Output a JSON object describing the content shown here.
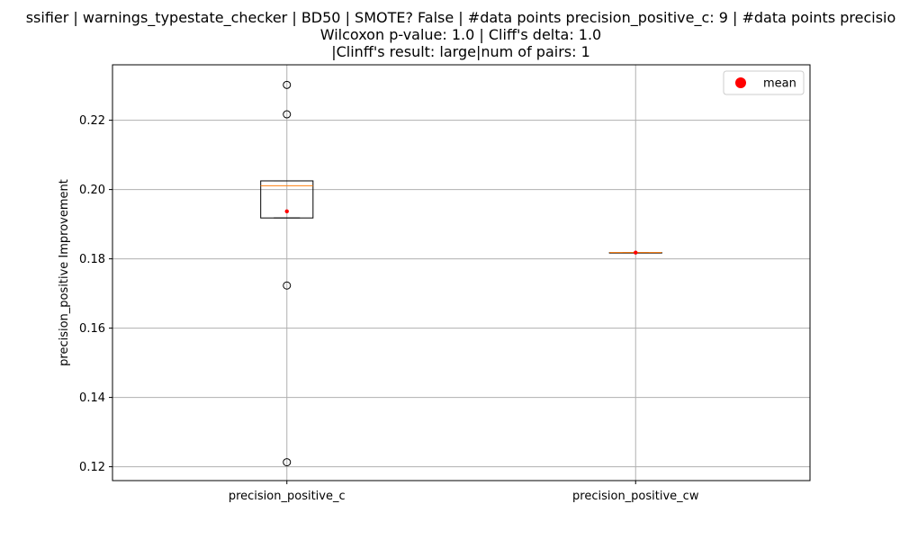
{
  "chart_data": {
    "type": "box",
    "title_lines": [
      "ssifier | warnings_typestate_checker | BD50 | SMOTE? False | #data points precision_positive_c: 9 | #data points precisio",
      "Wilcoxon p-value: 1.0 | Cliff's delta: 1.0",
      "|Clinff's result: large|num of pairs: 1"
    ],
    "xlabel": "",
    "ylabel": "precision_positive Improvement",
    "ylim": [
      0.116,
      0.236
    ],
    "yticks": [
      0.12,
      0.14,
      0.16,
      0.18,
      0.2,
      0.22
    ],
    "ytick_labels": [
      "0.12",
      "0.14",
      "0.16",
      "0.18",
      "0.20",
      "0.22"
    ],
    "grid": true,
    "legend": {
      "position": "top-right",
      "entries": [
        {
          "label": "mean",
          "color": "#ff0000"
        }
      ]
    },
    "colors": {
      "median": "#ff7f0e",
      "mean": "#ff0000",
      "box": "#000000",
      "grid": "#b0b0b0"
    },
    "categories": [
      "precision_positive_c",
      "precision_positive_cw"
    ],
    "boxes": [
      {
        "name": "precision_positive_c",
        "q1": 0.1918,
        "median": 0.2011,
        "q3": 0.2025,
        "whisker_low": 0.1918,
        "whisker_high": 0.2025,
        "mean": 0.1937,
        "outliers": [
          0.2302,
          0.2217,
          0.1723,
          0.1213
        ]
      },
      {
        "name": "precision_positive_cw",
        "q1": 0.1818,
        "median": 0.1818,
        "q3": 0.1818,
        "whisker_low": 0.1818,
        "whisker_high": 0.1818,
        "mean": 0.1818,
        "outliers": []
      }
    ]
  }
}
